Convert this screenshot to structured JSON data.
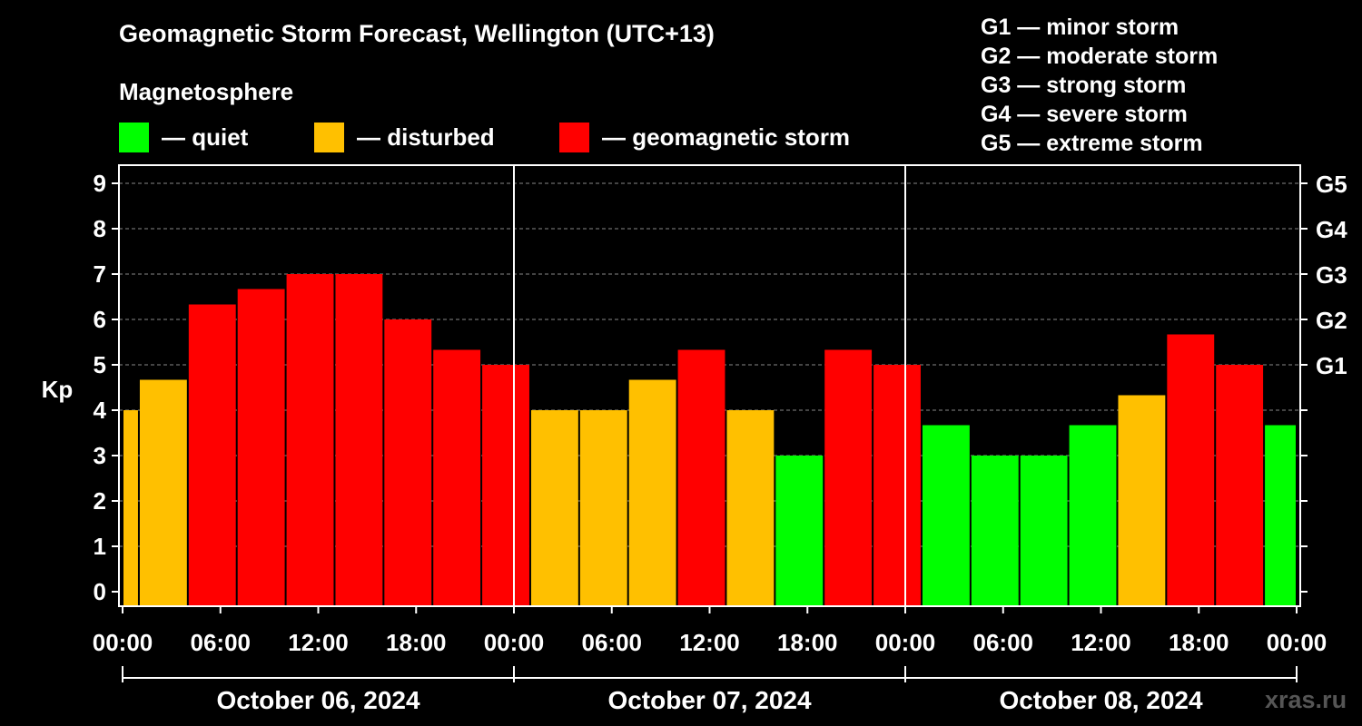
{
  "header": {
    "title": "Geomagnetic Storm Forecast, Wellington (UTC+13)",
    "legend_heading": "Magnetosphere"
  },
  "legend": [
    {
      "label": "— quiet",
      "color": "#00ff00"
    },
    {
      "label": "— disturbed",
      "color": "#ffc000"
    },
    {
      "label": "— geomagnetic storm",
      "color": "#ff0000"
    }
  ],
  "storm_scale": [
    "G1 — minor storm",
    "G2 — moderate storm",
    "G3 — strong storm",
    "G4 — severe storm",
    "G5 — extreme storm"
  ],
  "watermark": "xras.ru",
  "chart_data": {
    "type": "bar",
    "title": "Geomagnetic Storm Forecast, Wellington (UTC+13)",
    "ylabel": "Kp",
    "ylim": [
      0,
      9
    ],
    "yticks": [
      0,
      1,
      2,
      3,
      4,
      5,
      6,
      7,
      8,
      9
    ],
    "right_axis_labels": [
      {
        "kp": 5,
        "label": "G1"
      },
      {
        "kp": 6,
        "label": "G2"
      },
      {
        "kp": 7,
        "label": "G3"
      },
      {
        "kp": 8,
        "label": "G4"
      },
      {
        "kp": 9,
        "label": "G5"
      }
    ],
    "x_tick_labels": [
      "00:00",
      "06:00",
      "12:00",
      "18:00",
      "00:00",
      "06:00",
      "12:00",
      "18:00",
      "00:00",
      "06:00",
      "12:00",
      "18:00",
      "00:00"
    ],
    "days": [
      "October 06, 2024",
      "October 07, 2024",
      "October 08, 2024"
    ],
    "x_range_hours": [
      0,
      72
    ],
    "colors": {
      "quiet": "#00ff00",
      "disturbed": "#ffc000",
      "storm": "#ff0000"
    },
    "bars": [
      {
        "start_hour": 0,
        "end_hour": 1,
        "kp": 4.0,
        "level": "disturbed"
      },
      {
        "start_hour": 1,
        "end_hour": 4,
        "kp": 4.67,
        "level": "disturbed"
      },
      {
        "start_hour": 4,
        "end_hour": 7,
        "kp": 6.33,
        "level": "storm"
      },
      {
        "start_hour": 7,
        "end_hour": 10,
        "kp": 6.67,
        "level": "storm"
      },
      {
        "start_hour": 10,
        "end_hour": 13,
        "kp": 7.0,
        "level": "storm"
      },
      {
        "start_hour": 13,
        "end_hour": 16,
        "kp": 7.0,
        "level": "storm"
      },
      {
        "start_hour": 16,
        "end_hour": 19,
        "kp": 6.0,
        "level": "storm"
      },
      {
        "start_hour": 19,
        "end_hour": 22,
        "kp": 5.33,
        "level": "storm"
      },
      {
        "start_hour": 22,
        "end_hour": 25,
        "kp": 5.0,
        "level": "storm"
      },
      {
        "start_hour": 25,
        "end_hour": 28,
        "kp": 4.0,
        "level": "disturbed"
      },
      {
        "start_hour": 28,
        "end_hour": 31,
        "kp": 4.0,
        "level": "disturbed"
      },
      {
        "start_hour": 31,
        "end_hour": 34,
        "kp": 4.67,
        "level": "disturbed"
      },
      {
        "start_hour": 34,
        "end_hour": 37,
        "kp": 5.33,
        "level": "storm"
      },
      {
        "start_hour": 37,
        "end_hour": 40,
        "kp": 4.0,
        "level": "disturbed"
      },
      {
        "start_hour": 40,
        "end_hour": 43,
        "kp": 3.0,
        "level": "quiet"
      },
      {
        "start_hour": 43,
        "end_hour": 46,
        "kp": 5.33,
        "level": "storm"
      },
      {
        "start_hour": 46,
        "end_hour": 49,
        "kp": 5.0,
        "level": "storm"
      },
      {
        "start_hour": 49,
        "end_hour": 52,
        "kp": 3.67,
        "level": "quiet"
      },
      {
        "start_hour": 52,
        "end_hour": 55,
        "kp": 3.0,
        "level": "quiet"
      },
      {
        "start_hour": 55,
        "end_hour": 58,
        "kp": 3.0,
        "level": "quiet"
      },
      {
        "start_hour": 58,
        "end_hour": 61,
        "kp": 3.67,
        "level": "quiet"
      },
      {
        "start_hour": 61,
        "end_hour": 64,
        "kp": 4.33,
        "level": "disturbed"
      },
      {
        "start_hour": 64,
        "end_hour": 67,
        "kp": 5.67,
        "level": "storm"
      },
      {
        "start_hour": 67,
        "end_hour": 70,
        "kp": 5.0,
        "level": "storm"
      },
      {
        "start_hour": 70,
        "end_hour": 72,
        "kp": 3.67,
        "level": "quiet"
      }
    ]
  }
}
